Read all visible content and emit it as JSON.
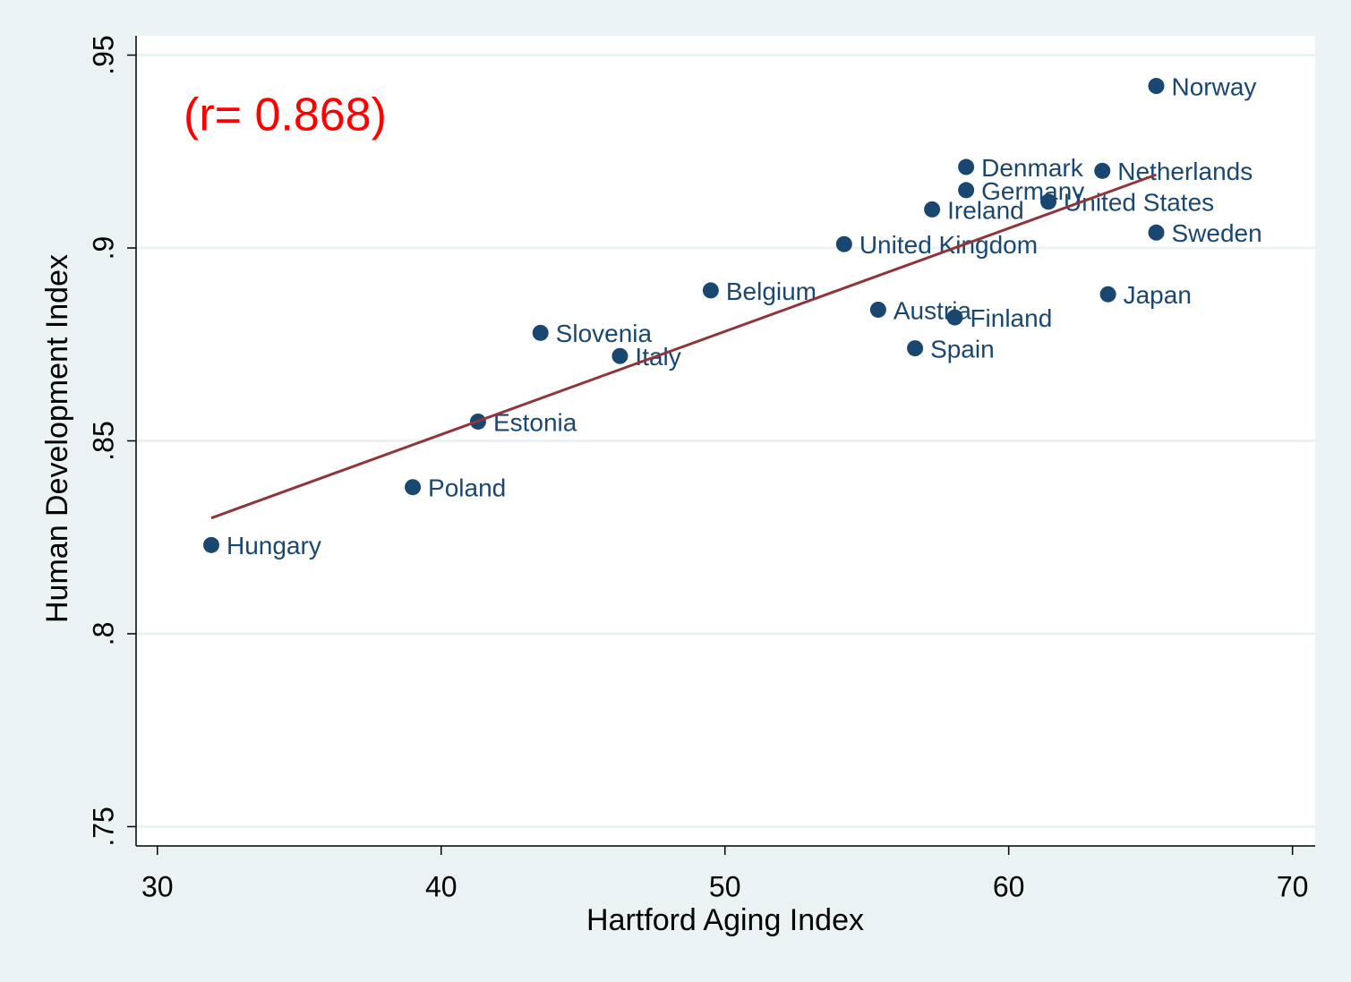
{
  "chart_data": {
    "type": "scatter",
    "x_label": "Hartford Aging Index",
    "y_label": "Human Development Index",
    "annotation": "(r= 0.868)",
    "categories": [
      "Hungary",
      "Poland",
      "Estonia",
      "Slovenia",
      "Italy",
      "Belgium",
      "United Kingdom",
      "Austria",
      "Spain",
      "Finland",
      "Ireland",
      "Germany",
      "Denmark",
      "United States",
      "Netherlands",
      "Japan",
      "Sweden",
      "Norway"
    ],
    "x": [
      31.9,
      39.0,
      41.3,
      43.5,
      46.3,
      49.5,
      54.2,
      55.4,
      56.7,
      58.1,
      57.3,
      58.5,
      58.5,
      61.4,
      63.3,
      63.5,
      65.2,
      65.2
    ],
    "values": [
      0.823,
      0.838,
      0.855,
      0.878,
      0.872,
      0.889,
      0.901,
      0.884,
      0.874,
      0.882,
      0.91,
      0.915,
      0.921,
      0.912,
      0.92,
      0.888,
      0.904,
      0.942
    ],
    "color": "#1a476f",
    "fit": {
      "x": [
        31.9,
        65.2
      ],
      "y": [
        0.83,
        0.919
      ],
      "color": "#90353b"
    },
    "xlim": [
      29.25,
      70.8
    ],
    "ylim": [
      0.745,
      0.955
    ],
    "xticks": [
      30,
      40,
      50,
      60,
      70
    ],
    "yticks": [
      {
        "value": 0.75,
        "label": ".75"
      },
      {
        "value": 0.8,
        "label": ".8"
      },
      {
        "value": 0.85,
        "label": ".85"
      },
      {
        "value": 0.9,
        "label": ".9"
      },
      {
        "value": 0.95,
        "label": ".95"
      }
    ],
    "grid": true
  }
}
